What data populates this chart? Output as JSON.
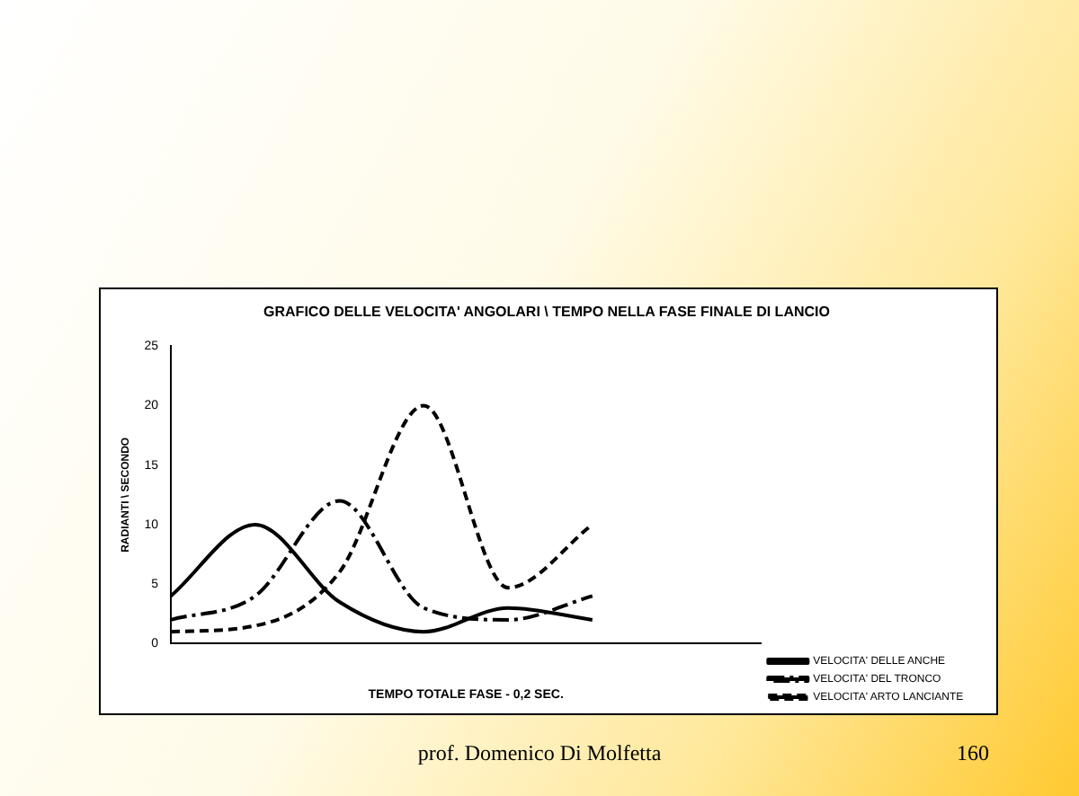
{
  "chart_data": {
    "type": "line",
    "title": "GRAFICO DELLE VELOCITA' ANGOLARI \\ TEMPO NELLA FASE FINALE DI LANCIO",
    "xlabel": "TEMPO TOTALE FASE - 0,2 SEC.",
    "ylabel": "RADIANTI \\ SECONDO",
    "categories": [
      null,
      null,
      null,
      null,
      null,
      null,
      null,
      null
    ],
    "series": [
      {
        "name": "VELOCITA' DELLE ANCHE",
        "color": "#000000",
        "line_style": "solid",
        "values": [
          4,
          10,
          3.5,
          1,
          3,
          2,
          null,
          null
        ]
      },
      {
        "name": "VELOCITA' DEL TRONCO",
        "color": "#000000",
        "line_style": "dashed",
        "values": [
          2,
          4,
          12,
          3,
          2,
          4,
          null,
          null
        ]
      },
      {
        "name": "VELOCITA' ARTO LANCIANTE",
        "color": "#000000",
        "line_style": "dotted",
        "values": [
          1,
          1.5,
          6,
          20,
          4.7,
          10,
          null,
          null
        ]
      }
    ],
    "ylim": [
      0,
      25
    ],
    "yticks": [
      0,
      5,
      10,
      15,
      20,
      25
    ],
    "grid": false,
    "legend": "bottom right",
    "marker": "none",
    "annotations": [
      "prof. Domenico Di Molfetta",
      "160"
    ]
  }
}
